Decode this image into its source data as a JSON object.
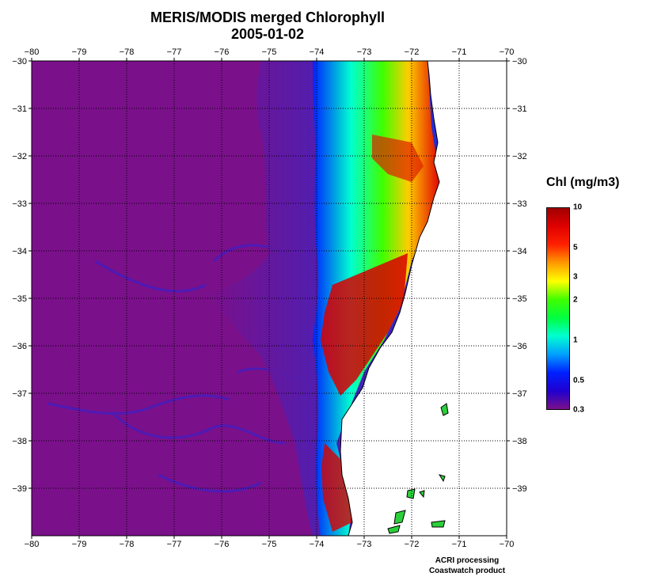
{
  "title": {
    "line1": "MERIS/MODIS merged Chlorophyll",
    "line2": "2005-01-02"
  },
  "map": {
    "lon_range": [
      -80,
      -70
    ],
    "lat_range": [
      -40,
      -30
    ],
    "lon_ticks": [
      "−80",
      "−79",
      "−78",
      "−77",
      "−76",
      "−75",
      "−74",
      "−73",
      "−72",
      "−71",
      "−70"
    ],
    "lat_ticks": [
      "−30",
      "−31",
      "−32",
      "−33",
      "−34",
      "−35",
      "−36",
      "−37",
      "−38",
      "−39"
    ],
    "grid": true,
    "gridline_style": "dotted"
  },
  "legend": {
    "title": "Chl (mg/m3)",
    "ticks": [
      "10",
      "5",
      "3",
      "2",
      "1",
      "0.5",
      "0.3"
    ],
    "tick_values": [
      10,
      5,
      3,
      2,
      1,
      0.5,
      0.3
    ],
    "scale": "log",
    "colors": [
      "#a00000",
      "#e00000",
      "#ff2000",
      "#ff9a00",
      "#ffff00",
      "#40ff00",
      "#00ff40",
      "#00ffd0",
      "#00a0ff",
      "#0020ff",
      "#2000d0",
      "#7a108a"
    ]
  },
  "colors": {
    "ocean_low": "#7a108a",
    "land": "#ffffff",
    "coast": "#000000"
  },
  "credits": {
    "line1": "ACRI processing",
    "line2": "Coastwatch product"
  }
}
